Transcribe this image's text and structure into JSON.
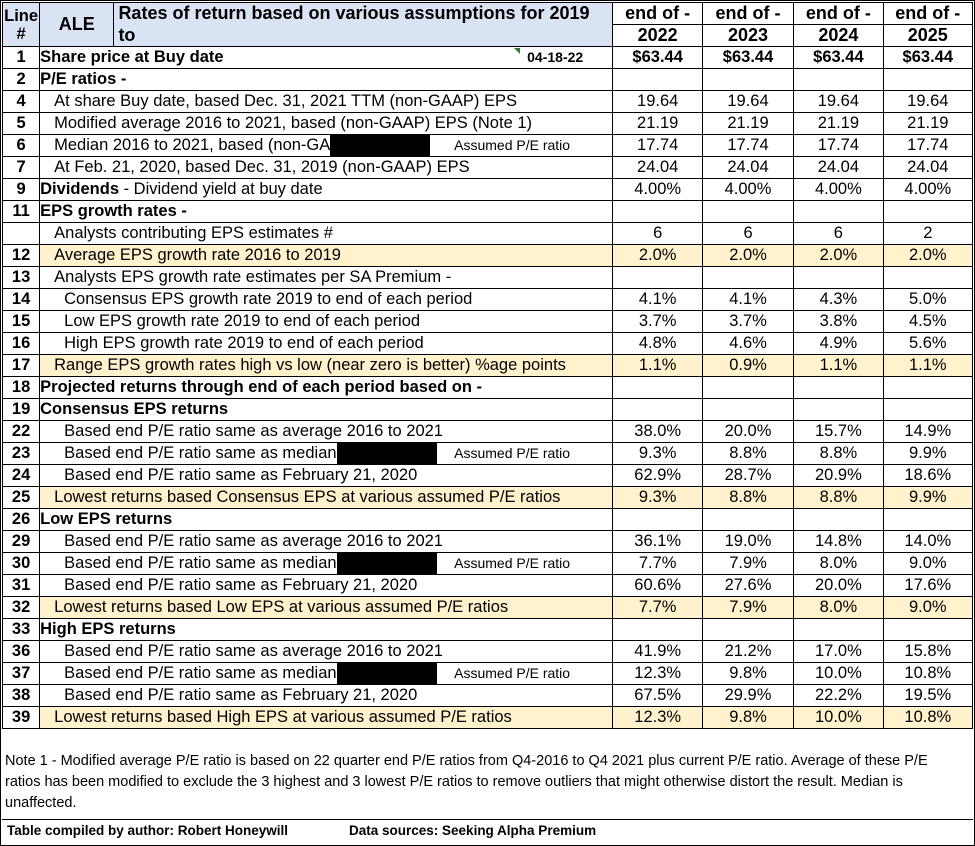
{
  "header": {
    "line_label_top": "Line",
    "line_label_bottom": "#",
    "ticker": "ALE",
    "title_line1": "Rates of return based on various assumptions for 2019",
    "title_line2": "to",
    "period_label": "end of -",
    "years": [
      "2022",
      "2023",
      "2024",
      "2025"
    ]
  },
  "rows": [
    {
      "line": "1",
      "label": "Share price at Buy date",
      "style": "bold",
      "date": "04-18-22",
      "values": [
        "$63.44",
        "$63.44",
        "$63.44",
        "$63.44"
      ],
      "bold_values": true
    },
    {
      "line": "2",
      "label": "P/E ratios -",
      "style": "bold",
      "values": [
        "",
        "",
        "",
        ""
      ]
    },
    {
      "line": "4",
      "label": "At share Buy date, based Dec. 31, 2021 TTM (non-GAAP) EPS",
      "style": "i1",
      "values": [
        "19.64",
        "19.64",
        "19.64",
        "19.64"
      ]
    },
    {
      "line": "5",
      "label": "Modified average 2016 to 2021, based (non-GAAP) EPS  (Note 1)",
      "style": "i1",
      "values": [
        "21.19",
        "21.19",
        "21.19",
        "21.19"
      ]
    },
    {
      "line": "6",
      "label": "Median 2016 to 2021, based (non-GA",
      "style": "i1",
      "redacted": true,
      "assumed": "Assumed P/E ratio",
      "values": [
        "17.74",
        "17.74",
        "17.74",
        "17.74"
      ]
    },
    {
      "line": "7",
      "label": "At Feb. 21, 2020, based Dec. 31, 2019 (non-GAAP) EPS",
      "style": "i1",
      "values": [
        "24.04",
        "24.04",
        "24.04",
        "24.04"
      ]
    },
    {
      "line": "9",
      "label": "Dividends",
      "label_suffix": " -  Dividend yield at buy date",
      "style": "bold",
      "values": [
        "4.00%",
        "4.00%",
        "4.00%",
        "4.00%"
      ]
    },
    {
      "line": "11",
      "label": "EPS growth rates -",
      "style": "bold",
      "values": [
        "",
        "",
        "",
        ""
      ]
    },
    {
      "line": "",
      "label": "Analysts contributing EPS estimates #",
      "style": "i1",
      "values": [
        "6",
        "6",
        "6",
        "2"
      ]
    },
    {
      "line": "12",
      "label": "Average EPS growth rate 2016 to 2019",
      "style": "i1",
      "highlight": true,
      "values": [
        "2.0%",
        "2.0%",
        "2.0%",
        "2.0%"
      ]
    },
    {
      "line": "13",
      "label": "Analysts EPS growth rate estimates per SA Premium -",
      "style": "i1",
      "values": [
        "",
        "",
        "",
        ""
      ]
    },
    {
      "line": "14",
      "label": "Consensus EPS growth rate 2019 to end of each period",
      "style": "i2",
      "values": [
        "4.1%",
        "4.1%",
        "4.3%",
        "5.0%"
      ]
    },
    {
      "line": "15",
      "label": "Low EPS growth rate 2019 to end of each period",
      "style": "i2",
      "values": [
        "3.7%",
        "3.7%",
        "3.8%",
        "4.5%"
      ]
    },
    {
      "line": "16",
      "label": "High EPS growth rate 2019 to end of each period",
      "style": "i2",
      "values": [
        "4.8%",
        "4.6%",
        "4.9%",
        "5.6%"
      ]
    },
    {
      "line": "17",
      "label": "Range EPS growth rates high vs low (near zero is better) %age points",
      "style": "i1",
      "highlight": true,
      "values": [
        "1.1%",
        "0.9%",
        "1.1%",
        "1.1%"
      ]
    },
    {
      "line": "18",
      "label": "Projected returns through end of each period based on -",
      "style": "bold",
      "values": [
        "",
        "",
        "",
        ""
      ]
    },
    {
      "line": "19",
      "label": "Consensus EPS returns",
      "style": "bold",
      "values": [
        "",
        "",
        "",
        ""
      ]
    },
    {
      "line": "22",
      "label": "Based end P/E ratio same as average 2016 to 2021",
      "style": "i2",
      "values": [
        "38.0%",
        "20.0%",
        "15.7%",
        "14.9%"
      ]
    },
    {
      "line": "23",
      "label": "Based end P/E ratio same as median",
      "style": "i2",
      "redacted": true,
      "assumed": "Assumed P/E ratio",
      "values": [
        "9.3%",
        "8.8%",
        "8.8%",
        "9.9%"
      ]
    },
    {
      "line": "24",
      "label": "Based end P/E ratio same as February 21, 2020",
      "style": "i2",
      "values": [
        "62.9%",
        "28.7%",
        "20.9%",
        "18.6%"
      ]
    },
    {
      "line": "25",
      "label": "Lowest returns based Consensus EPS at various assumed P/E ratios",
      "style": "i1",
      "highlight": true,
      "values": [
        "9.3%",
        "8.8%",
        "8.8%",
        "9.9%"
      ]
    },
    {
      "line": "26",
      "label": "Low EPS returns",
      "style": "bold",
      "values": [
        "",
        "",
        "",
        ""
      ]
    },
    {
      "line": "29",
      "label": "Based end P/E ratio same as average 2016 to 2021",
      "style": "i2",
      "values": [
        "36.1%",
        "19.0%",
        "14.8%",
        "14.0%"
      ]
    },
    {
      "line": "30",
      "label": "Based end P/E ratio same as median",
      "style": "i2",
      "redacted": true,
      "assumed": "Assumed P/E ratio",
      "values": [
        "7.7%",
        "7.9%",
        "8.0%",
        "9.0%"
      ]
    },
    {
      "line": "31",
      "label": "Based end P/E ratio same as February 21, 2020",
      "style": "i2",
      "values": [
        "60.6%",
        "27.6%",
        "20.0%",
        "17.6%"
      ]
    },
    {
      "line": "32",
      "label": "Lowest returns based Low EPS at various assumed P/E ratios",
      "style": "i1",
      "highlight": true,
      "values": [
        "7.7%",
        "7.9%",
        "8.0%",
        "9.0%"
      ]
    },
    {
      "line": "33",
      "label": "High  EPS returns",
      "style": "bold",
      "values": [
        "",
        "",
        "",
        ""
      ]
    },
    {
      "line": "36",
      "label": "Based end P/E ratio same as average 2016 to 2021",
      "style": "i2",
      "values": [
        "41.9%",
        "21.2%",
        "17.0%",
        "15.8%"
      ]
    },
    {
      "line": "37",
      "label": "Based end P/E ratio same as median",
      "style": "i2",
      "redacted": true,
      "assumed": "Assumed P/E ratio",
      "values": [
        "12.3%",
        "9.8%",
        "10.0%",
        "10.8%"
      ]
    },
    {
      "line": "38",
      "label": "Based end P/E ratio same as February 21, 2020",
      "style": "i2",
      "values": [
        "67.5%",
        "29.9%",
        "22.2%",
        "19.5%"
      ]
    },
    {
      "line": "39",
      "label": "Lowest returns based High EPS at various assumed P/E ratios",
      "style": "i1",
      "highlight": true,
      "values": [
        "12.3%",
        "9.8%",
        "10.0%",
        "10.8%"
      ]
    }
  ],
  "note": "Note 1 - Modified average P/E ratio is based on 22 quarter end  P/E ratios from Q4-2016 to Q4 2021 plus current P/E ratio. Average of these P/E ratios has been modified to exclude the 3 highest and 3 lowest P/E ratios to remove outliers that might otherwise distort the result. Median is unaffected.",
  "footer": {
    "compiled_by": "Table compiled by author: Robert Honeywill",
    "sources": "Data sources: Seeking Alpha Premium"
  },
  "colors": {
    "header_fill": "#dae3f3",
    "highlight_fill": "#fff2cc"
  }
}
